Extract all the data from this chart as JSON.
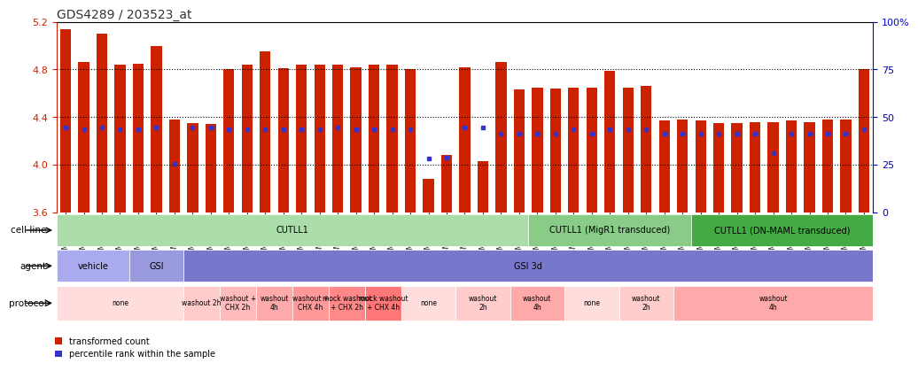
{
  "title": "GDS4289 / 203523_at",
  "ylim": [
    3.6,
    5.2
  ],
  "yticks": [
    3.6,
    4.0,
    4.4,
    4.8,
    5.2
  ],
  "right_yticks": [
    0,
    25,
    50,
    75,
    100
  ],
  "right_ytick_labels": [
    "0",
    "25",
    "50",
    "75",
    "100%"
  ],
  "samples": [
    "GSM731500",
    "GSM731501",
    "GSM731502",
    "GSM731503",
    "GSM731504",
    "GSM731505",
    "GSM731518",
    "GSM731519",
    "GSM731520",
    "GSM731506",
    "GSM731507",
    "GSM731508",
    "GSM731509",
    "GSM731510",
    "GSM731511",
    "GSM731512",
    "GSM731513",
    "GSM731514",
    "GSM731515",
    "GSM731516",
    "GSM731517",
    "GSM731521",
    "GSM731522",
    "GSM731523",
    "GSM731524",
    "GSM731525",
    "GSM731526",
    "GSM731527",
    "GSM731528",
    "GSM731529",
    "GSM731531",
    "GSM731532",
    "GSM731533",
    "GSM731534",
    "GSM731535",
    "GSM731536",
    "GSM731537",
    "GSM731538",
    "GSM731539",
    "GSM731540",
    "GSM731541",
    "GSM731542",
    "GSM731543",
    "GSM731544",
    "GSM731545"
  ],
  "bar_values": [
    5.14,
    4.86,
    5.1,
    4.84,
    4.85,
    5.0,
    4.38,
    4.35,
    4.34,
    4.8,
    4.84,
    4.95,
    4.81,
    4.84,
    4.84,
    4.84,
    4.82,
    4.84,
    4.84,
    4.8,
    3.88,
    4.08,
    4.82,
    4.03,
    4.86,
    4.63,
    4.65,
    4.64,
    4.65,
    4.65,
    4.79,
    4.65,
    4.66,
    4.37,
    4.38,
    4.37,
    4.35,
    4.35,
    4.36,
    4.36,
    4.37,
    4.36,
    4.38,
    4.38,
    4.8
  ],
  "blue_square_values": [
    4.31,
    4.3,
    4.31,
    4.3,
    4.3,
    4.31,
    4.01,
    4.31,
    4.31,
    4.3,
    4.3,
    4.3,
    4.3,
    4.3,
    4.3,
    4.31,
    4.3,
    4.3,
    4.3,
    4.3,
    4.05,
    4.06,
    4.31,
    4.31,
    4.26,
    4.26,
    4.26,
    4.26,
    4.3,
    4.26,
    4.3,
    4.3,
    4.3,
    4.26,
    4.26,
    4.26,
    4.26,
    4.26,
    4.26,
    4.1,
    4.26,
    4.26,
    4.26,
    4.26,
    4.3
  ],
  "bar_color": "#cc2200",
  "blue_color": "#3333cc",
  "title_color": "#333333",
  "left_axis_color": "#cc2200",
  "right_axis_color": "#0000cc",
  "cell_line_groups": [
    {
      "label": "CUTLL1",
      "start": 0,
      "end": 26,
      "color": "#aaddaa"
    },
    {
      "label": "CUTLL1 (MigR1 transduced)",
      "start": 26,
      "end": 35,
      "color": "#88cc88"
    },
    {
      "label": "CUTLL1 (DN-MAML transduced)",
      "start": 35,
      "end": 45,
      "color": "#44aa44"
    }
  ],
  "agent_groups": [
    {
      "label": "vehicle",
      "start": 0,
      "end": 4,
      "color": "#aaaaee"
    },
    {
      "label": "GSI",
      "start": 4,
      "end": 7,
      "color": "#9999dd"
    },
    {
      "label": "GSI 3d",
      "start": 7,
      "end": 45,
      "color": "#7777cc"
    }
  ],
  "protocol_groups": [
    {
      "label": "none",
      "start": 0,
      "end": 7,
      "color": "#ffdddd"
    },
    {
      "label": "washout 2h",
      "start": 7,
      "end": 9,
      "color": "#ffcccc"
    },
    {
      "label": "washout +\nCHX 2h",
      "start": 9,
      "end": 11,
      "color": "#ffbbbb"
    },
    {
      "label": "washout\n4h",
      "start": 11,
      "end": 13,
      "color": "#ffaaaa"
    },
    {
      "label": "washout +\nCHX 4h",
      "start": 13,
      "end": 15,
      "color": "#ff9999"
    },
    {
      "label": "mock washout\n+ CHX 2h",
      "start": 15,
      "end": 17,
      "color": "#ff8888"
    },
    {
      "label": "mock washout\n+ CHX 4h",
      "start": 17,
      "end": 19,
      "color": "#ff7777"
    },
    {
      "label": "none",
      "start": 19,
      "end": 22,
      "color": "#ffdddd"
    },
    {
      "label": "washout\n2h",
      "start": 22,
      "end": 25,
      "color": "#ffcccc"
    },
    {
      "label": "washout\n4h",
      "start": 25,
      "end": 28,
      "color": "#ffaaaa"
    },
    {
      "label": "none",
      "start": 28,
      "end": 31,
      "color": "#ffdddd"
    },
    {
      "label": "washout\n2h",
      "start": 31,
      "end": 34,
      "color": "#ffcccc"
    },
    {
      "label": "washout\n4h",
      "start": 34,
      "end": 45,
      "color": "#ffaaaa"
    }
  ],
  "legend_items": [
    {
      "label": "transformed count",
      "color": "#cc2200",
      "marker": "s"
    },
    {
      "label": "percentile rank within the sample",
      "color": "#3333cc",
      "marker": "s"
    }
  ]
}
